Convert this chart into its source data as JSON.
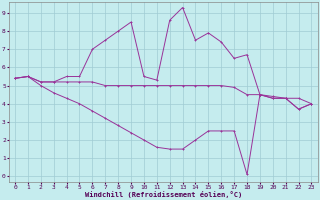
{
  "xlabel": "Windchill (Refroidissement éolien,°C)",
  "bg_color": "#c5ecee",
  "grid_color": "#a0ccd4",
  "line_color": "#993399",
  "x_ticks": [
    0,
    1,
    2,
    3,
    4,
    5,
    6,
    7,
    8,
    9,
    10,
    11,
    12,
    13,
    14,
    15,
    16,
    17,
    18,
    19,
    20,
    21,
    22,
    23
  ],
  "y_ticks": [
    0,
    1,
    2,
    3,
    4,
    5,
    6,
    7,
    8,
    9
  ],
  "ylim": [
    -0.3,
    9.6
  ],
  "xlim": [
    -0.5,
    23.5
  ],
  "series1_x": [
    0,
    1,
    2,
    3,
    4,
    5,
    6,
    7,
    8,
    9,
    10,
    11,
    12,
    13,
    14,
    15,
    16,
    17,
    18,
    19,
    20,
    21,
    22,
    23
  ],
  "series1_y": [
    5.4,
    5.5,
    5.2,
    5.2,
    5.5,
    5.5,
    7.0,
    7.5,
    8.0,
    8.5,
    5.5,
    5.3,
    8.6,
    9.3,
    7.5,
    7.9,
    7.4,
    6.5,
    6.7,
    4.5,
    4.3,
    4.3,
    3.7,
    4.0
  ],
  "series2_x": [
    0,
    1,
    2,
    3,
    4,
    5,
    6,
    7,
    8,
    9,
    10,
    11,
    12,
    13,
    14,
    15,
    16,
    17,
    18,
    19,
    20,
    21,
    22,
    23
  ],
  "series2_y": [
    5.4,
    5.5,
    5.2,
    5.2,
    5.2,
    5.2,
    5.2,
    5.0,
    5.0,
    5.0,
    5.0,
    5.0,
    5.0,
    5.0,
    5.0,
    5.0,
    5.0,
    4.9,
    4.5,
    4.5,
    4.4,
    4.3,
    4.3,
    4.0
  ],
  "series3_x": [
    0,
    1,
    2,
    3,
    4,
    5,
    6,
    7,
    8,
    9,
    10,
    11,
    12,
    13,
    14,
    15,
    16,
    17,
    18,
    19,
    20,
    21,
    22,
    23
  ],
  "series3_y": [
    5.4,
    5.5,
    5.0,
    4.6,
    4.3,
    4.0,
    3.6,
    3.2,
    2.8,
    2.4,
    2.0,
    1.6,
    1.5,
    1.5,
    2.0,
    2.5,
    2.5,
    2.5,
    0.1,
    4.5,
    4.3,
    4.3,
    3.7,
    4.0
  ]
}
